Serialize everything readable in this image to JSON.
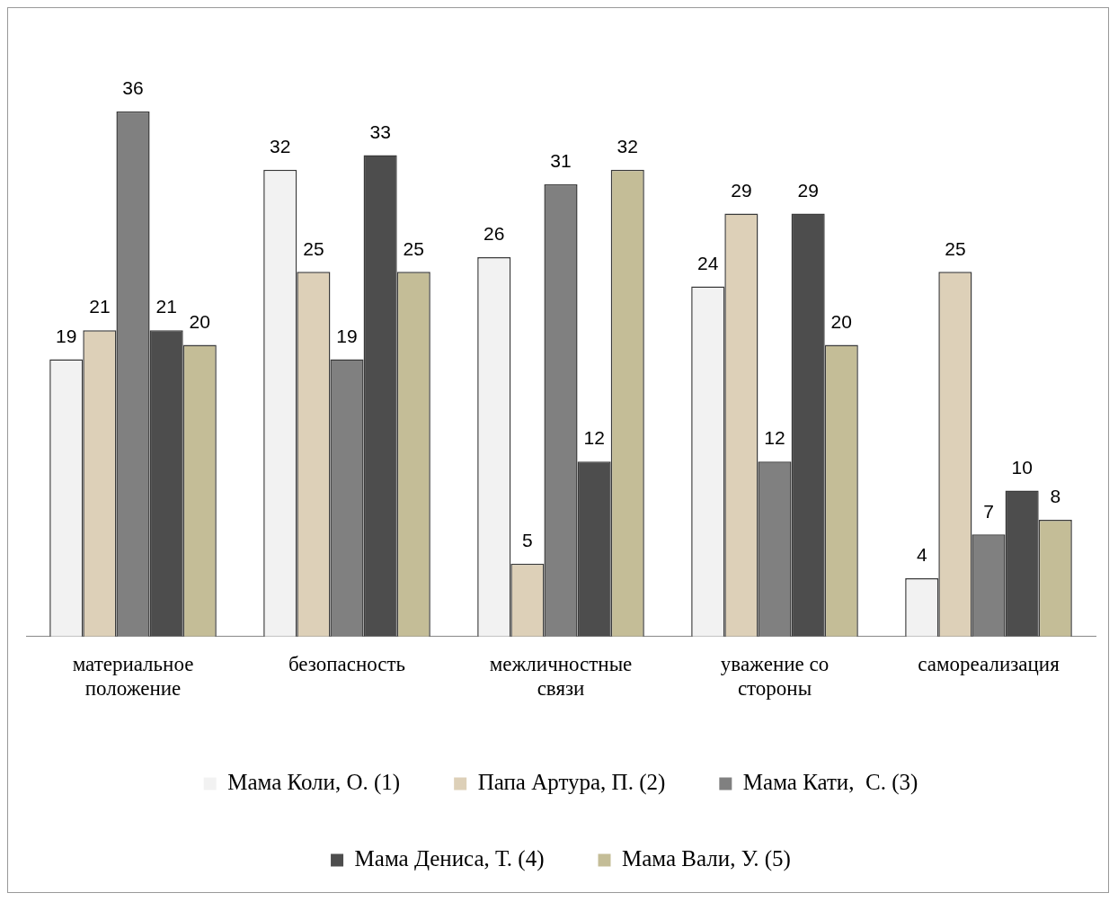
{
  "chart_data": {
    "type": "bar",
    "categories": [
      "материальное положение",
      "безопасность",
      "межличностные связи",
      "уважение со стороны",
      "самореализация"
    ],
    "series": [
      {
        "name": "Мама Коли, О. (1)",
        "color": "#f2f2f2",
        "values": [
          19,
          32,
          26,
          24,
          4
        ]
      },
      {
        "name": "Папа Артура, П. (2)",
        "color": "#ddd0b8",
        "values": [
          21,
          25,
          5,
          29,
          25
        ]
      },
      {
        "name": "Мама Кати,  С. (3)",
        "color": "#808080",
        "values": [
          36,
          19,
          31,
          12,
          7
        ]
      },
      {
        "name": "Мама Дениса, Т. (4)",
        "color": "#4d4d4d",
        "values": [
          21,
          33,
          12,
          29,
          10
        ]
      },
      {
        "name": "Мама Вали, У. (5)",
        "color": "#c4bd97",
        "values": [
          20,
          25,
          32,
          20,
          8
        ]
      }
    ],
    "data_labels": true,
    "grid": false,
    "legend": "bottom"
  }
}
